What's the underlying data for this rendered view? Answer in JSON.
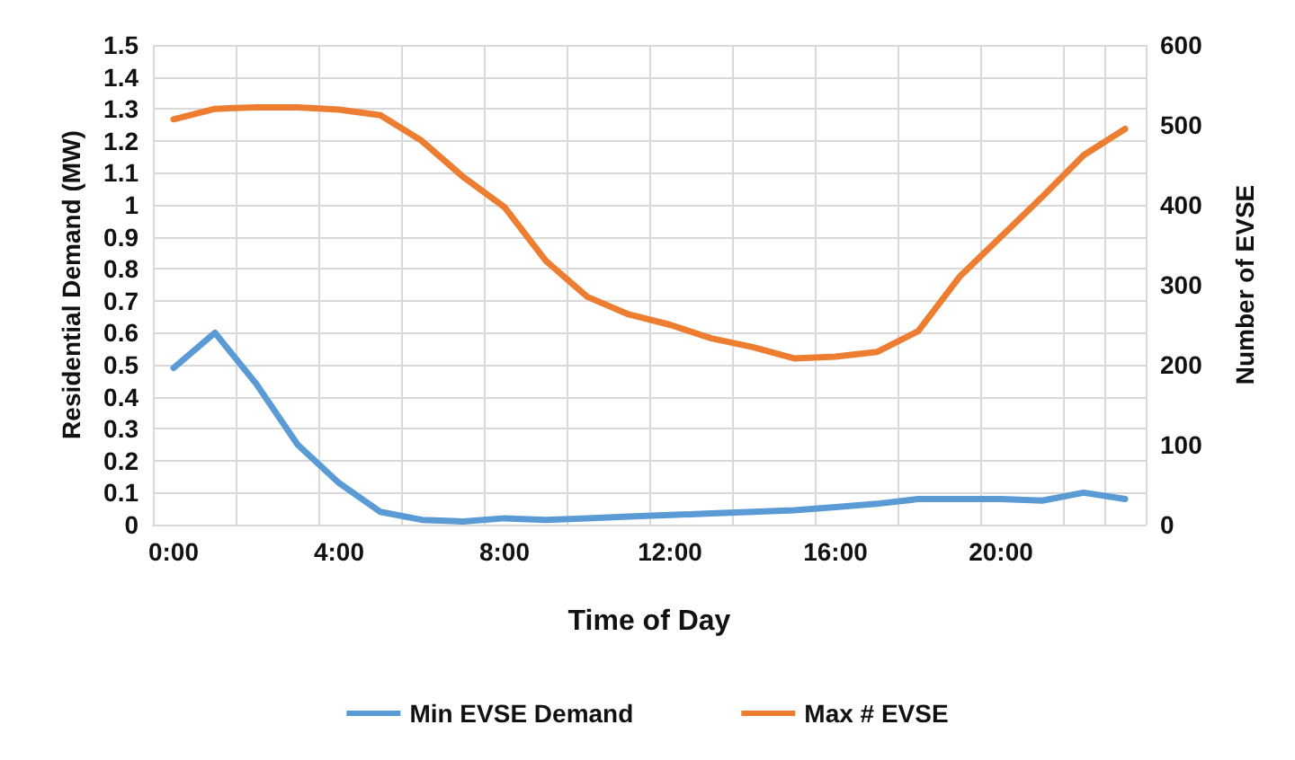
{
  "chart_data": {
    "type": "line",
    "xlabel": "Time of Day",
    "ylabel": "Residential Demand (MW)",
    "y2label": "Number of EVSE",
    "categories": [
      "0:00",
      null,
      null,
      null,
      "4:00",
      null,
      null,
      null,
      "8:00",
      null,
      null,
      null,
      "12:00",
      null,
      null,
      null,
      "16:00",
      null,
      null,
      null,
      "20:00",
      null,
      null,
      null
    ],
    "series": [
      {
        "name": "Min EVSE Demand",
        "color": "#5b9bd5",
        "values": [
          0.49,
          0.6,
          0.44,
          0.25,
          0.13,
          0.04,
          0.015,
          0.01,
          0.02,
          0.015,
          0.02,
          0.025,
          0.03,
          0.035,
          0.04,
          0.045,
          0.055,
          0.065,
          0.08,
          0.08,
          0.08,
          0.075,
          0.1,
          0.08
        ]
      },
      {
        "name": "Max # EVSE",
        "color": "#ed7d31",
        "axis": "y2",
        "values": [
          507,
          520,
          522,
          522,
          519,
          512,
          480,
          435,
          397,
          330,
          285,
          263,
          250,
          233,
          222,
          208,
          210,
          216,
          242,
          310,
          360,
          410,
          462,
          495
        ]
      }
    ],
    "ylim": [
      0,
      1.5
    ],
    "yticks": [
      0,
      0.1,
      0.2,
      0.3,
      0.4,
      0.5,
      0.6,
      0.7,
      0.8,
      0.9,
      1,
      1.1,
      1.2,
      1.3,
      1.4,
      1.5
    ],
    "y2lim": [
      0,
      600
    ],
    "y2ticks": [
      0,
      100,
      200,
      300,
      400,
      500,
      600
    ],
    "grid": true,
    "legend": "bottom",
    "marker": "none",
    "line_style": "solid"
  }
}
